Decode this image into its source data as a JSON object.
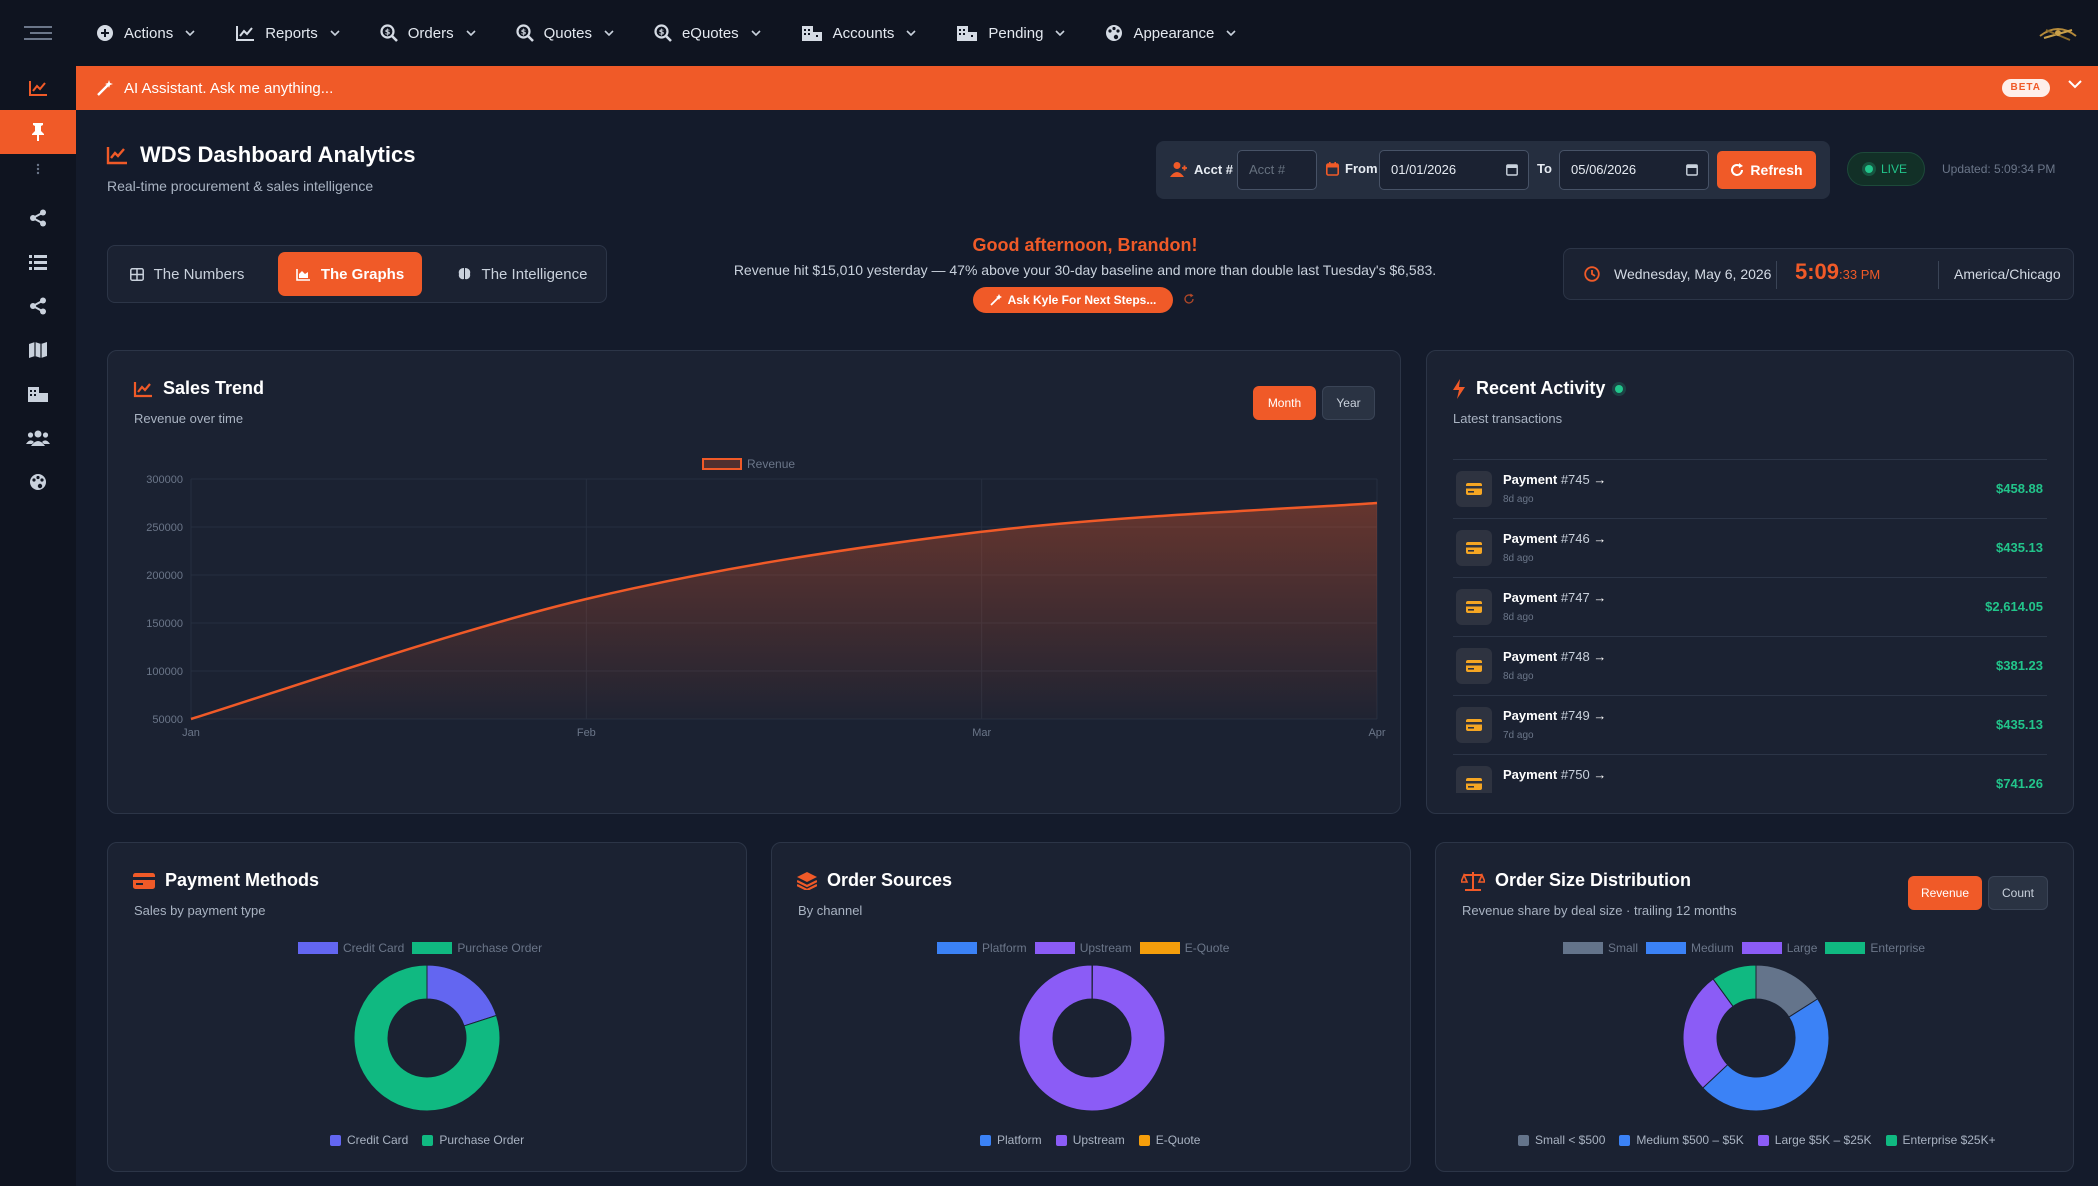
{
  "nav": {
    "items": [
      {
        "label": "Actions",
        "icon": "plus-circle-icon"
      },
      {
        "label": "Reports",
        "icon": "line-chart-icon"
      },
      {
        "label": "Orders",
        "icon": "search-dollar-icon"
      },
      {
        "label": "Quotes",
        "icon": "search-dollar-icon"
      },
      {
        "label": "eQuotes",
        "icon": "search-dollar-icon"
      },
      {
        "label": "Accounts",
        "icon": "building-icon"
      },
      {
        "label": "Pending",
        "icon": "building-icon"
      },
      {
        "label": "Appearance",
        "icon": "palette-icon"
      }
    ]
  },
  "ai": {
    "label": "AI Assistant. Ask me anything...",
    "badge": "BETA"
  },
  "header": {
    "title": "WDS Dashboard Analytics",
    "subtitle": "Real-time procurement & sales intelligence"
  },
  "filters": {
    "acct_label": "Acct #",
    "acct_placeholder": "Acct #",
    "from_label": "From",
    "from_value": "01/01/2026",
    "to_label": "To",
    "to_value": "05/06/2026",
    "refresh_label": "Refresh"
  },
  "status": {
    "live": "LIVE",
    "updated": "Updated: 5:09:34 PM"
  },
  "tabs": [
    {
      "label": "The Numbers",
      "icon": "table-icon"
    },
    {
      "label": "The Graphs",
      "icon": "area-chart-icon"
    },
    {
      "label": "The Intelligence",
      "icon": "brain-icon"
    }
  ],
  "greeting": {
    "headline": "Good afternoon, Brandon!",
    "message": "Revenue hit $15,010 yesterday — 47% above your 30-day baseline and more than double last Tuesday's $6,583.",
    "button": "Ask Kyle For Next Steps..."
  },
  "clock": {
    "date": "Wednesday, May 6, 2026",
    "time": "5:09",
    "seconds": ":33 PM",
    "timezone": "America/Chicago"
  },
  "sales_trend": {
    "title": "Sales Trend",
    "subtitle": "Revenue over time",
    "toggle": [
      "Month",
      "Year"
    ],
    "legend": "Revenue",
    "color": "#f05a28"
  },
  "recent_activity": {
    "title": "Recent Activity",
    "subtitle": "Latest transactions",
    "items": [
      {
        "name": "Payment",
        "num": "#745",
        "time": "8d ago",
        "amount": "$458.88"
      },
      {
        "name": "Payment",
        "num": "#746",
        "time": "8d ago",
        "amount": "$435.13"
      },
      {
        "name": "Payment",
        "num": "#747",
        "time": "8d ago",
        "amount": "$2,614.05"
      },
      {
        "name": "Payment",
        "num": "#748",
        "time": "8d ago",
        "amount": "$381.23"
      },
      {
        "name": "Payment",
        "num": "#749",
        "time": "7d ago",
        "amount": "$435.13"
      },
      {
        "name": "Payment",
        "num": "#750",
        "time": "",
        "amount": "$741.26"
      }
    ]
  },
  "payment_methods": {
    "title": "Payment Methods",
    "subtitle": "Sales by payment type"
  },
  "order_sources": {
    "title": "Order Sources",
    "subtitle": "By channel"
  },
  "order_size": {
    "title": "Order Size Distribution",
    "subtitle": "Revenue share by deal size · trailing 12 months",
    "toggle": [
      "Revenue",
      "Count"
    ],
    "bottom_legend": [
      "Small < $500",
      "Medium $500 – $5K",
      "Large $5K – $25K",
      "Enterprise $25K+"
    ]
  },
  "chart_data": [
    {
      "type": "area",
      "x": [
        "Jan",
        "Feb",
        "Mar",
        "Apr"
      ],
      "series": [
        {
          "name": "Revenue",
          "values": [
            50000,
            175000,
            245000,
            275000
          ]
        }
      ],
      "ylim": [
        50000,
        300000
      ],
      "yticks": [
        "300000",
        "250000",
        "200000",
        "150000",
        "100000",
        "50000"
      ],
      "legend": "top-center",
      "grid": true
    },
    {
      "type": "pie",
      "categories": [
        "Credit Card",
        "Purchase Order"
      ],
      "values": [
        0.2,
        0.8
      ],
      "colors": [
        "#6366f1",
        "#10b981"
      ],
      "legend": "top-center"
    },
    {
      "type": "pie",
      "categories": [
        "Platform",
        "Upstream",
        "E-Quote"
      ],
      "values": [
        0.001,
        0.999,
        0
      ],
      "colors": [
        "#3b82f6",
        "#8b5cf6",
        "#f59e0b"
      ],
      "legend": "top-center"
    },
    {
      "type": "pie",
      "categories": [
        "Small",
        "Medium",
        "Large",
        "Enterprise"
      ],
      "values": [
        0.16,
        0.47,
        0.27,
        0.1
      ],
      "colors": [
        "#64748b",
        "#3b82f6",
        "#8b5cf6",
        "#10b981"
      ],
      "legend": "top-center"
    }
  ]
}
